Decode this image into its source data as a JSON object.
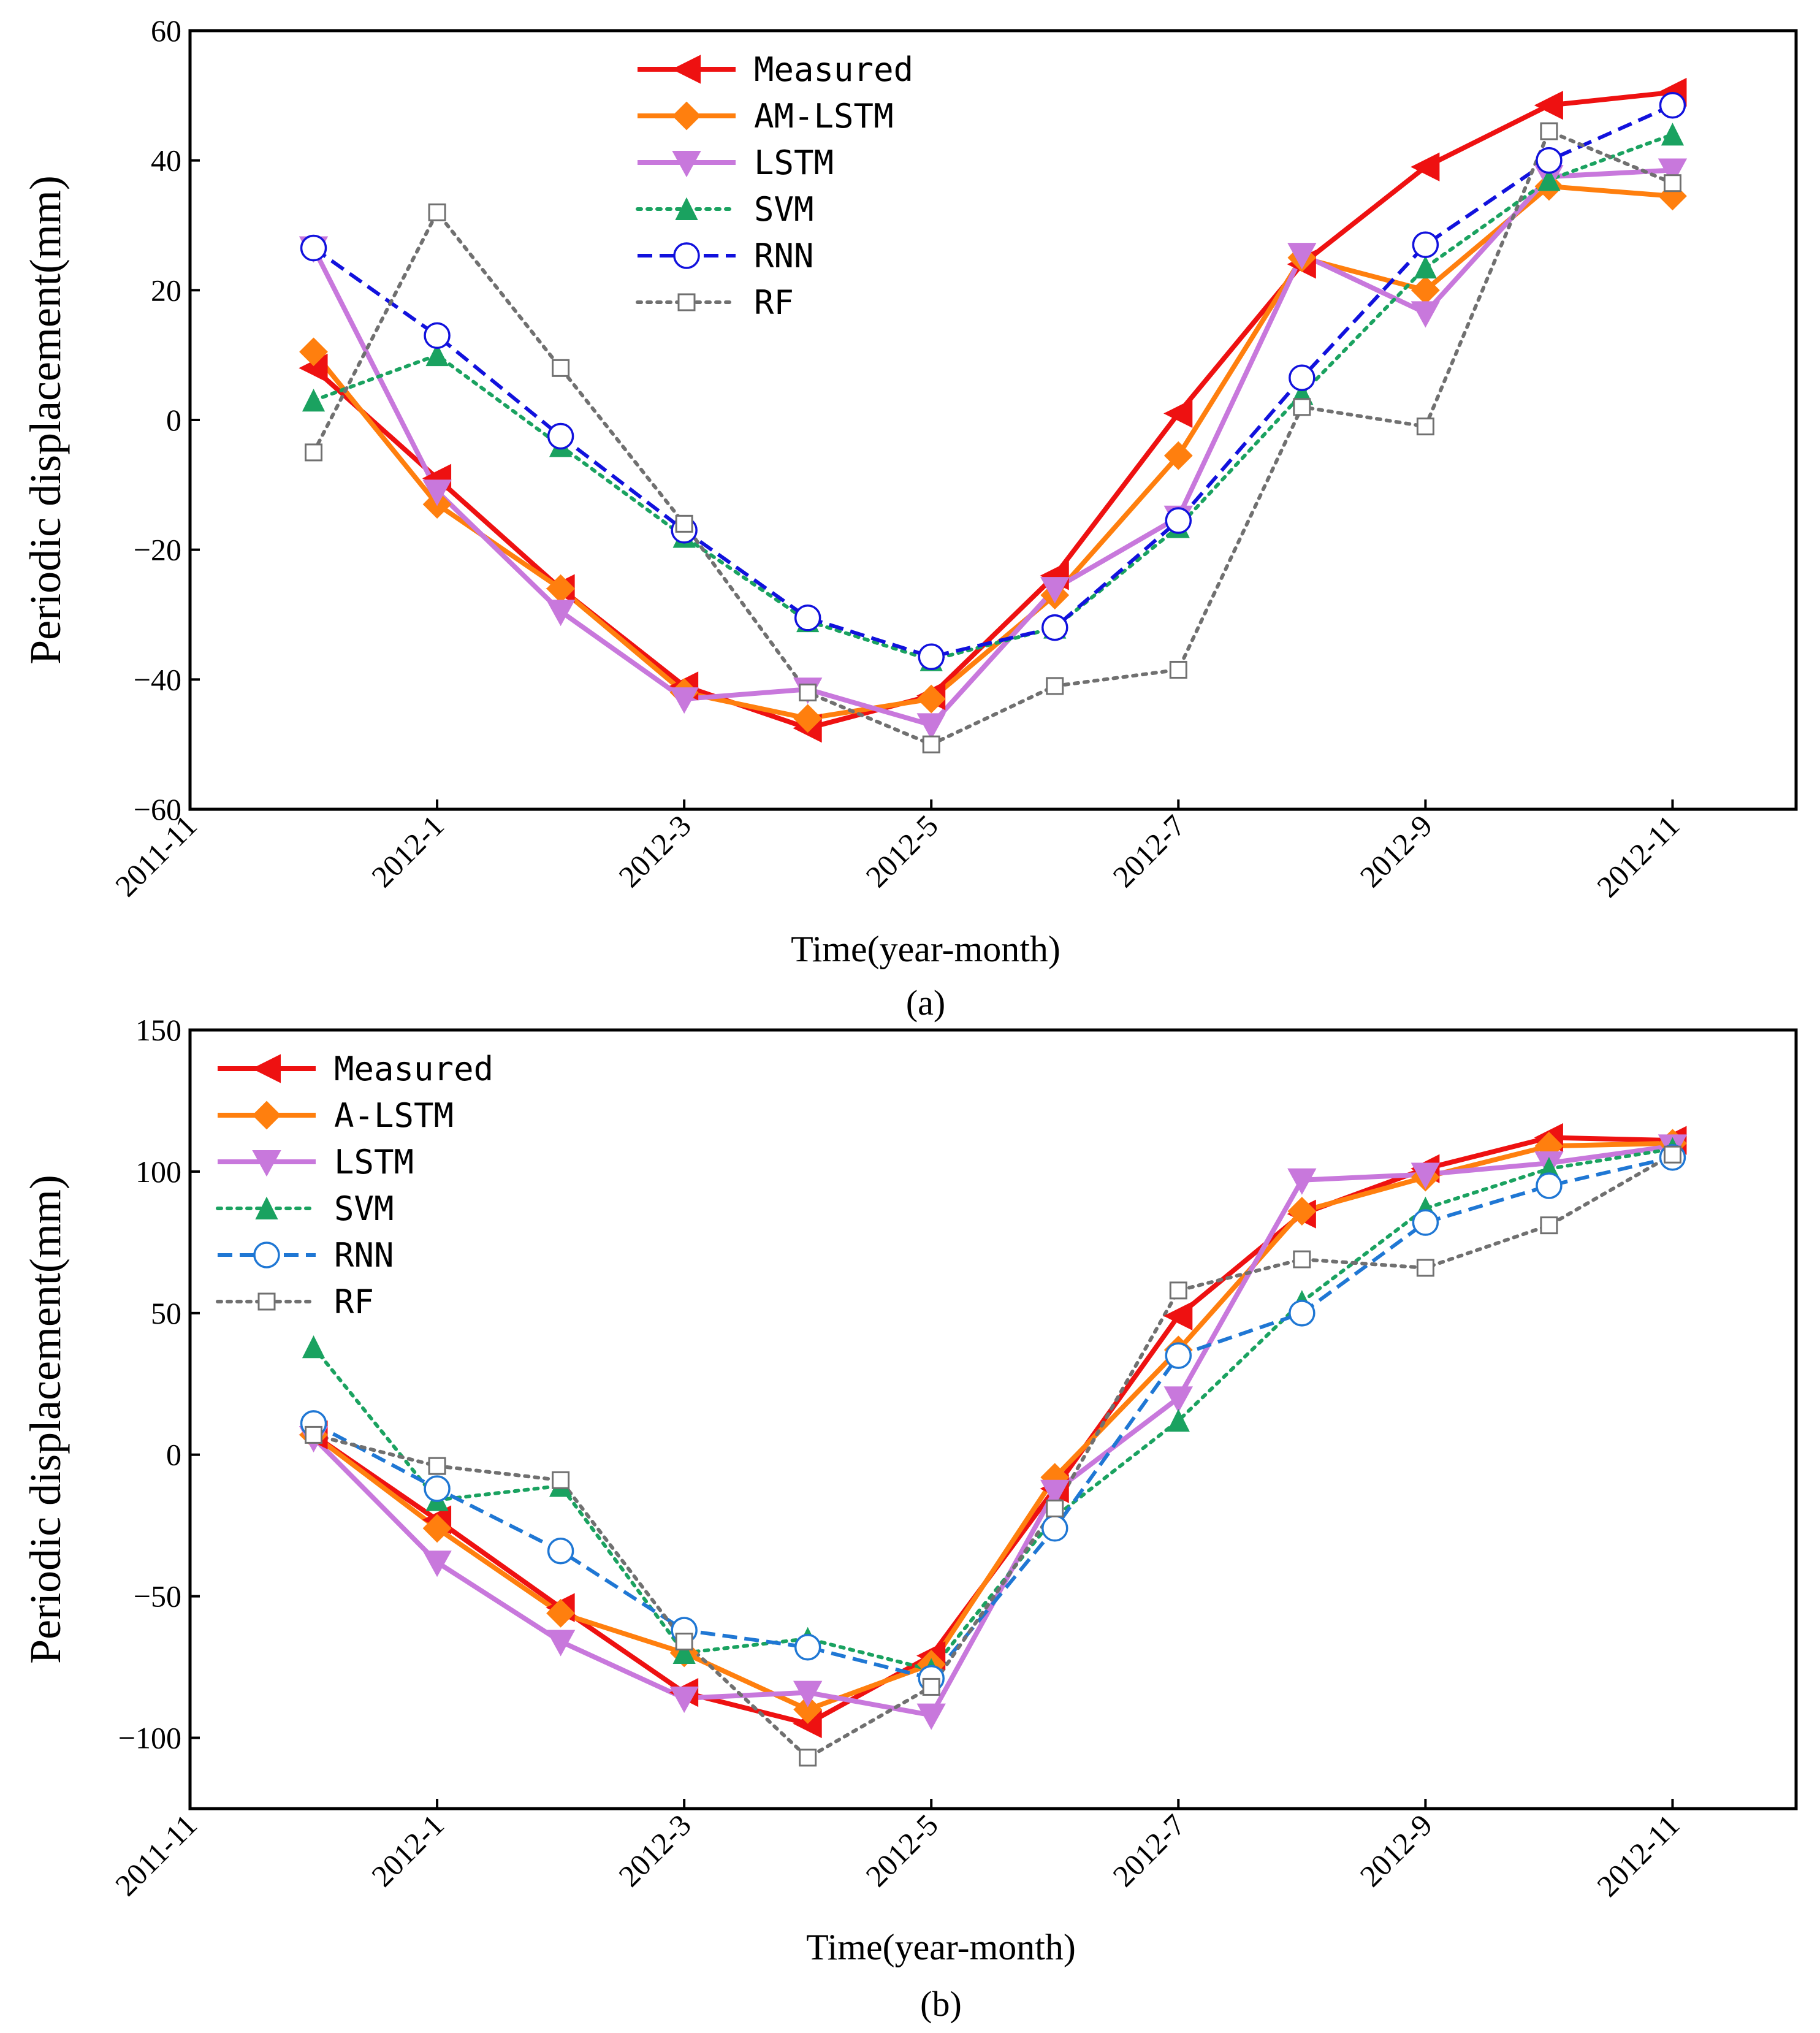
{
  "chart_data": [
    {
      "type": "line",
      "panel_label": "(a)",
      "xlabel": "Time(year-month)",
      "ylabel": "Periodic displacement(mm)",
      "ylim": [
        -60,
        60
      ],
      "yticks": [
        -60,
        -40,
        -20,
        0,
        20,
        40,
        60
      ],
      "ytick_labels": [
        "−60",
        "−40",
        "−20",
        "0",
        "20",
        "40",
        "60"
      ],
      "xlim": [
        0,
        13
      ],
      "xticks": [
        0,
        2,
        4,
        6,
        8,
        10,
        12
      ],
      "xtick_labels": [
        "2011-11",
        "2012-1",
        "2012-3",
        "2012-5",
        "2012-7",
        "2012-9",
        "2012-11"
      ],
      "x": [
        1,
        2,
        3,
        4,
        5,
        6,
        7,
        8,
        9,
        10,
        11,
        12
      ],
      "legend_position": "top-center",
      "series": [
        {
          "name": "Measured",
          "color": "#ee1111",
          "line": "solid",
          "marker": "triangle-left",
          "values": [
            8,
            -9,
            -26,
            -41,
            -47.5,
            -42.5,
            -24,
            1,
            24,
            39,
            48.5,
            50.5
          ]
        },
        {
          "name": "AM-LSTM",
          "color": "#ff7f0e",
          "line": "solid",
          "marker": "diamond",
          "values": [
            10.5,
            -13,
            -26,
            -42,
            -46,
            -43,
            -27,
            -5.5,
            25,
            20,
            36,
            34.5
          ]
        },
        {
          "name": "LSTM",
          "color": "#c878dc",
          "line": "solid",
          "marker": "triangle-down",
          "values": [
            26.5,
            -11,
            -29.5,
            -43,
            -41.5,
            -47,
            -26,
            -15,
            25.5,
            16.5,
            37.5,
            38.5
          ]
        },
        {
          "name": "SVM",
          "color": "#1aa260",
          "line": "dotted",
          "marker": "triangle-up",
          "values": [
            3,
            10,
            -4,
            -18,
            -31,
            -37,
            -32,
            -16.5,
            4,
            23.5,
            37,
            44
          ]
        },
        {
          "name": "RNN",
          "color": "#1111dd",
          "line": "dashed",
          "marker": "circle-open",
          "values": [
            26.5,
            13,
            -2.5,
            -17,
            -30.5,
            -36.5,
            -32,
            -15.5,
            6.5,
            27,
            40,
            48.5
          ]
        },
        {
          "name": "RF",
          "color": "#707070",
          "line": "dotted",
          "marker": "square-open",
          "values": [
            -5,
            32,
            8,
            -16,
            -42,
            -50,
            -41,
            -38.5,
            2,
            -1,
            44.5,
            36.5
          ]
        }
      ]
    },
    {
      "type": "line",
      "panel_label": "(b)",
      "xlabel": "Time(year-month)",
      "ylabel": "Periodic displacement(mm)",
      "ylim": [
        -125,
        150
      ],
      "yticks": [
        -100,
        -50,
        0,
        50,
        100,
        150
      ],
      "ytick_labels": [
        "−100",
        "−50",
        "0",
        "50",
        "100",
        "150"
      ],
      "xlim": [
        0,
        13
      ],
      "xticks": [
        0,
        2,
        4,
        6,
        8,
        10,
        12
      ],
      "xtick_labels": [
        "2011-11",
        "2012-1",
        "2012-3",
        "2012-5",
        "2012-7",
        "2012-9",
        "2012-11"
      ],
      "x": [
        1,
        2,
        3,
        4,
        5,
        6,
        7,
        8,
        9,
        10,
        11,
        12
      ],
      "legend_position": "top-left",
      "series": [
        {
          "name": "Measured",
          "color": "#ee1111",
          "line": "solid",
          "marker": "triangle-left",
          "values": [
            7,
            -23,
            -54,
            -84,
            -95,
            -71,
            -12,
            49,
            85,
            101,
            112,
            111
          ]
        },
        {
          "name": "A-LSTM",
          "color": "#ff7f0e",
          "line": "solid",
          "marker": "diamond",
          "values": [
            7,
            -26,
            -56,
            -70,
            -90,
            -74,
            -8,
            37,
            86,
            98,
            109,
            110
          ]
        },
        {
          "name": "LSTM",
          "color": "#c878dc",
          "line": "solid",
          "marker": "triangle-down",
          "values": [
            6,
            -38,
            -66,
            -86,
            -84,
            -92,
            -13,
            20,
            97,
            99,
            103,
            109
          ]
        },
        {
          "name": "SVM",
          "color": "#1aa260",
          "line": "dotted",
          "marker": "triangle-up",
          "values": [
            38,
            -16,
            -11,
            -70,
            -65,
            -76,
            -22,
            12,
            54,
            87,
            101,
            108
          ]
        },
        {
          "name": "RNN",
          "color": "#1f77d4",
          "line": "dashed",
          "marker": "circle-open",
          "values": [
            11,
            -12,
            -34,
            -62,
            -68,
            -79,
            -26,
            35,
            50,
            82,
            95,
            105
          ]
        },
        {
          "name": "RF",
          "color": "#707070",
          "line": "dotted",
          "marker": "square-open",
          "values": [
            7,
            -4,
            -9,
            -66,
            -107,
            -82,
            -19,
            58,
            69,
            66,
            81,
            106
          ]
        }
      ]
    }
  ]
}
